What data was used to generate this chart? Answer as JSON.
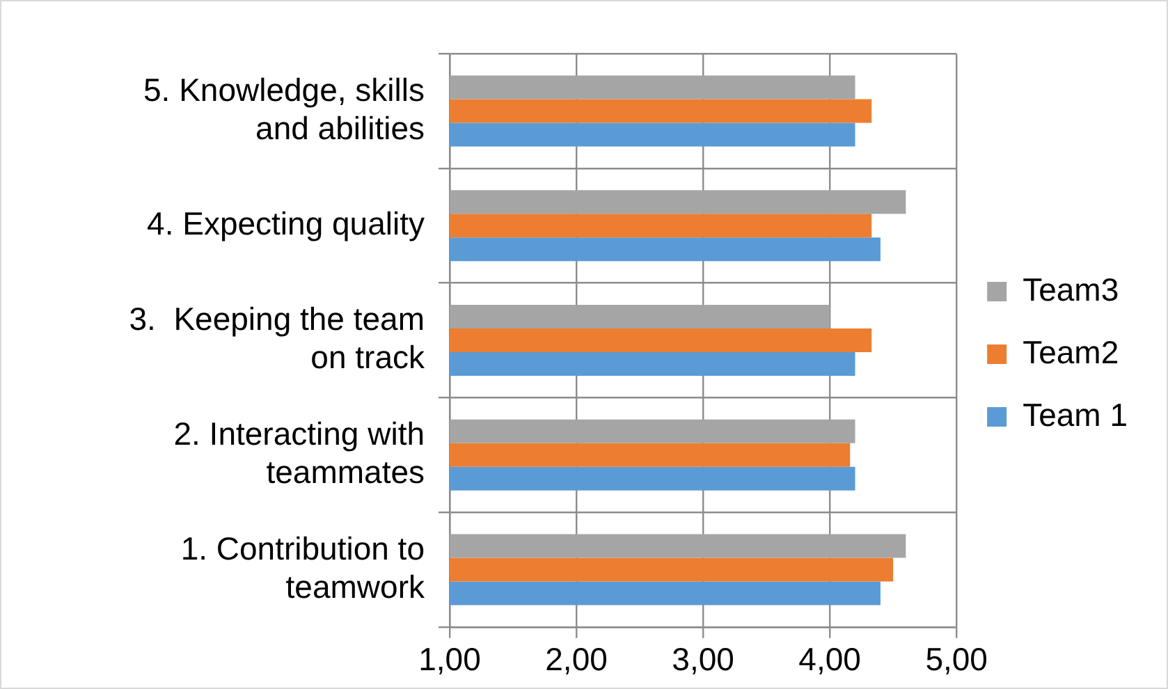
{
  "chart_data": {
    "type": "bar",
    "orientation": "horizontal",
    "categories": [
      "5. Knowledge, skills and abilities",
      "4. Expecting quality",
      "3.  Keeping the team on track",
      "2. Interacting with teammates",
      "1. Contribution to teamwork"
    ],
    "series": [
      {
        "name": "Team 1",
        "color": "#5b9bd5",
        "values": [
          4.2,
          4.4,
          4.2,
          4.2,
          4.4
        ]
      },
      {
        "name": "Team2",
        "color": "#ed7d31",
        "values": [
          4.33,
          4.33,
          4.33,
          4.16,
          4.5
        ]
      },
      {
        "name": "Team3",
        "color": "#a5a5a5",
        "values": [
          4.2,
          4.6,
          4.0,
          4.2,
          4.6
        ]
      }
    ],
    "xlim": [
      1,
      5
    ],
    "xticks": [
      {
        "value": 1,
        "label": "1,00"
      },
      {
        "value": 2,
        "label": "2,00"
      },
      {
        "value": 3,
        "label": "3,00"
      },
      {
        "value": 4,
        "label": "4,00"
      },
      {
        "value": 5,
        "label": "5,00"
      }
    ],
    "grid": true,
    "legend": "right"
  }
}
